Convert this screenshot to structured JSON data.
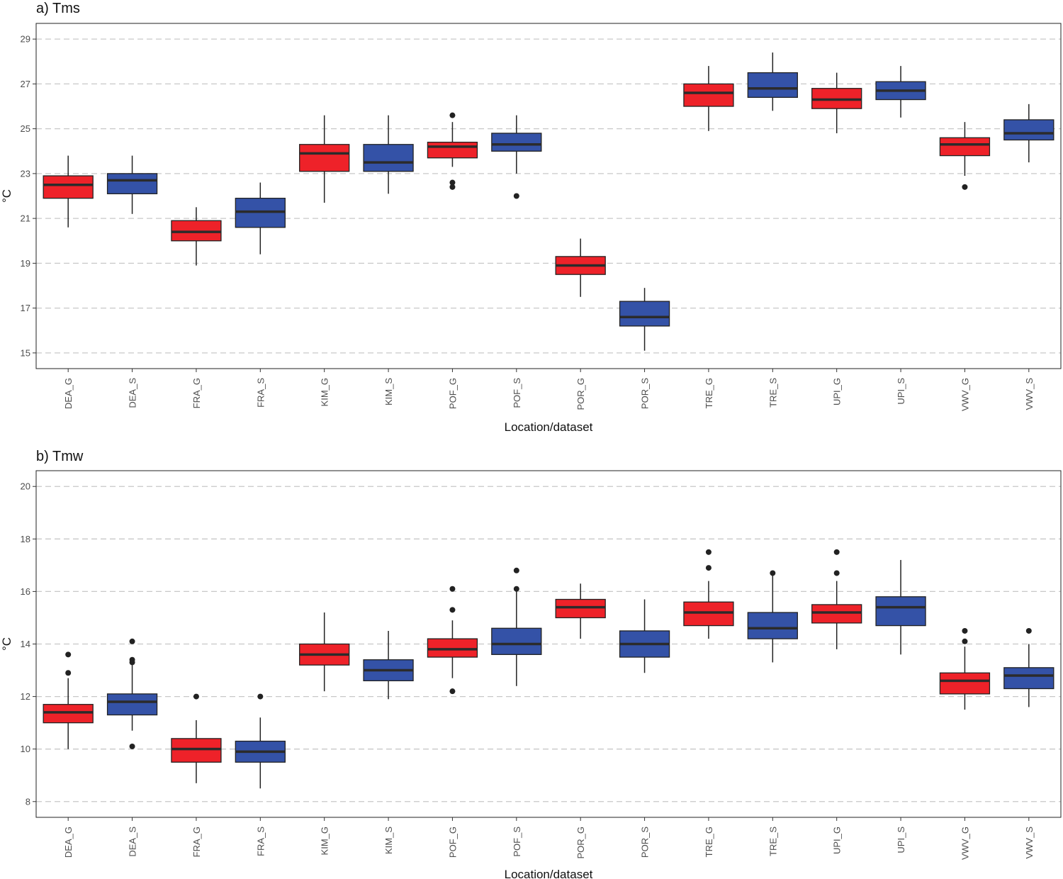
{
  "colors": {
    "gauge": "#ee2229",
    "satellite": "#3452a7",
    "median": "#2b2b2b",
    "grid": "#c8c8c8",
    "outlier": "#222222"
  },
  "chart_data": [
    {
      "type": "box",
      "title": "a) Tms",
      "xlabel": "Location/dataset",
      "ylabel": "°C",
      "ylim": [
        14.3,
        29.7
      ],
      "yticks": [
        15,
        17,
        19,
        21,
        23,
        25,
        27,
        29
      ],
      "grid": "horizontal dashed",
      "categories": [
        "DEA_G",
        "DEA_S",
        "FRA_G",
        "FRA_S",
        "KIM_G",
        "KIM_S",
        "POF_G",
        "POF_S",
        "POR_G",
        "POR_S",
        "TRE_G",
        "TRE_S",
        "UPI_G",
        "UPI_S",
        "VWV_G",
        "VWV_S"
      ],
      "boxes": [
        {
          "min": 20.6,
          "q1": 21.9,
          "median": 22.5,
          "q3": 22.9,
          "max": 23.8,
          "outliers": []
        },
        {
          "min": 21.2,
          "q1": 22.1,
          "median": 22.7,
          "q3": 23.0,
          "max": 23.8,
          "outliers": []
        },
        {
          "min": 18.9,
          "q1": 20.0,
          "median": 20.4,
          "q3": 20.9,
          "max": 21.5,
          "outliers": []
        },
        {
          "min": 19.4,
          "q1": 20.6,
          "median": 21.3,
          "q3": 21.9,
          "max": 22.6,
          "outliers": []
        },
        {
          "min": 21.7,
          "q1": 23.1,
          "median": 23.9,
          "q3": 24.3,
          "max": 25.6,
          "outliers": []
        },
        {
          "min": 22.1,
          "q1": 23.1,
          "median": 23.5,
          "q3": 24.3,
          "max": 25.6,
          "outliers": []
        },
        {
          "min": 23.3,
          "q1": 23.7,
          "median": 24.2,
          "q3": 24.4,
          "max": 25.3,
          "outliers": [
            25.6,
            22.6,
            22.4
          ]
        },
        {
          "min": 23.0,
          "q1": 24.0,
          "median": 24.3,
          "q3": 24.8,
          "max": 25.6,
          "outliers": [
            22.0
          ]
        },
        {
          "min": 17.5,
          "q1": 18.5,
          "median": 18.9,
          "q3": 19.3,
          "max": 20.1,
          "outliers": []
        },
        {
          "min": 15.1,
          "q1": 16.2,
          "median": 16.6,
          "q3": 17.3,
          "max": 17.9,
          "outliers": []
        },
        {
          "min": 24.9,
          "q1": 26.0,
          "median": 26.6,
          "q3": 27.0,
          "max": 27.8,
          "outliers": []
        },
        {
          "min": 25.8,
          "q1": 26.4,
          "median": 26.8,
          "q3": 27.5,
          "max": 28.4,
          "outliers": []
        },
        {
          "min": 24.8,
          "q1": 25.9,
          "median": 26.3,
          "q3": 26.8,
          "max": 27.5,
          "outliers": []
        },
        {
          "min": 25.5,
          "q1": 26.3,
          "median": 26.7,
          "q3": 27.1,
          "max": 27.8,
          "outliers": []
        },
        {
          "min": 22.9,
          "q1": 23.8,
          "median": 24.3,
          "q3": 24.6,
          "max": 25.3,
          "outliers": [
            22.4
          ]
        },
        {
          "min": 23.5,
          "q1": 24.5,
          "median": 24.8,
          "q3": 25.4,
          "max": 26.1,
          "outliers": []
        }
      ]
    },
    {
      "type": "box",
      "title": "b) Tmw",
      "xlabel": "Location/dataset",
      "ylabel": "°C",
      "ylim": [
        7.4,
        20.6
      ],
      "yticks": [
        8,
        10,
        12,
        14,
        16,
        18,
        20
      ],
      "grid": "horizontal dashed",
      "categories": [
        "DEA_G",
        "DEA_S",
        "FRA_G",
        "FRA_S",
        "KIM_G",
        "KIM_S",
        "POF_G",
        "POF_S",
        "POR_G",
        "POR_S",
        "TRE_G",
        "TRE_S",
        "UPI_G",
        "UPI_S",
        "VWV_G",
        "VWV_S"
      ],
      "boxes": [
        {
          "min": 10.0,
          "q1": 11.0,
          "median": 11.4,
          "q3": 11.7,
          "max": 12.7,
          "outliers": [
            13.6,
            12.9
          ]
        },
        {
          "min": 10.7,
          "q1": 11.3,
          "median": 11.8,
          "q3": 12.1,
          "max": 13.2,
          "outliers": [
            14.1,
            13.4,
            13.3,
            10.1
          ]
        },
        {
          "min": 8.7,
          "q1": 9.5,
          "median": 10.0,
          "q3": 10.4,
          "max": 11.1,
          "outliers": [
            12.0
          ]
        },
        {
          "min": 8.5,
          "q1": 9.5,
          "median": 9.9,
          "q3": 10.3,
          "max": 11.2,
          "outliers": [
            12.0
          ]
        },
        {
          "min": 12.2,
          "q1": 13.2,
          "median": 13.6,
          "q3": 14.0,
          "max": 15.2,
          "outliers": []
        },
        {
          "min": 11.9,
          "q1": 12.6,
          "median": 13.0,
          "q3": 13.4,
          "max": 14.5,
          "outliers": []
        },
        {
          "min": 12.7,
          "q1": 13.5,
          "median": 13.8,
          "q3": 14.2,
          "max": 14.9,
          "outliers": [
            16.1,
            15.3,
            12.2
          ]
        },
        {
          "min": 12.4,
          "q1": 13.6,
          "median": 14.0,
          "q3": 14.6,
          "max": 16.0,
          "outliers": [
            16.8,
            16.1
          ]
        },
        {
          "min": 14.2,
          "q1": 15.0,
          "median": 15.4,
          "q3": 15.7,
          "max": 16.3,
          "outliers": []
        },
        {
          "min": 12.9,
          "q1": 13.5,
          "median": 14.0,
          "q3": 14.5,
          "max": 15.7,
          "outliers": []
        },
        {
          "min": 14.2,
          "q1": 14.7,
          "median": 15.2,
          "q3": 15.6,
          "max": 16.4,
          "outliers": [
            17.5,
            16.9
          ]
        },
        {
          "min": 13.3,
          "q1": 14.2,
          "median": 14.6,
          "q3": 15.2,
          "max": 16.7,
          "outliers": [
            16.7
          ]
        },
        {
          "min": 13.8,
          "q1": 14.8,
          "median": 15.2,
          "q3": 15.5,
          "max": 16.4,
          "outliers": [
            17.5,
            16.7
          ]
        },
        {
          "min": 13.6,
          "q1": 14.7,
          "median": 15.4,
          "q3": 15.8,
          "max": 17.2,
          "outliers": []
        },
        {
          "min": 11.5,
          "q1": 12.1,
          "median": 12.6,
          "q3": 12.9,
          "max": 13.9,
          "outliers": [
            14.5,
            14.1
          ]
        },
        {
          "min": 11.6,
          "q1": 12.3,
          "median": 12.8,
          "q3": 13.1,
          "max": 14.0,
          "outliers": [
            14.5
          ]
        }
      ]
    }
  ]
}
